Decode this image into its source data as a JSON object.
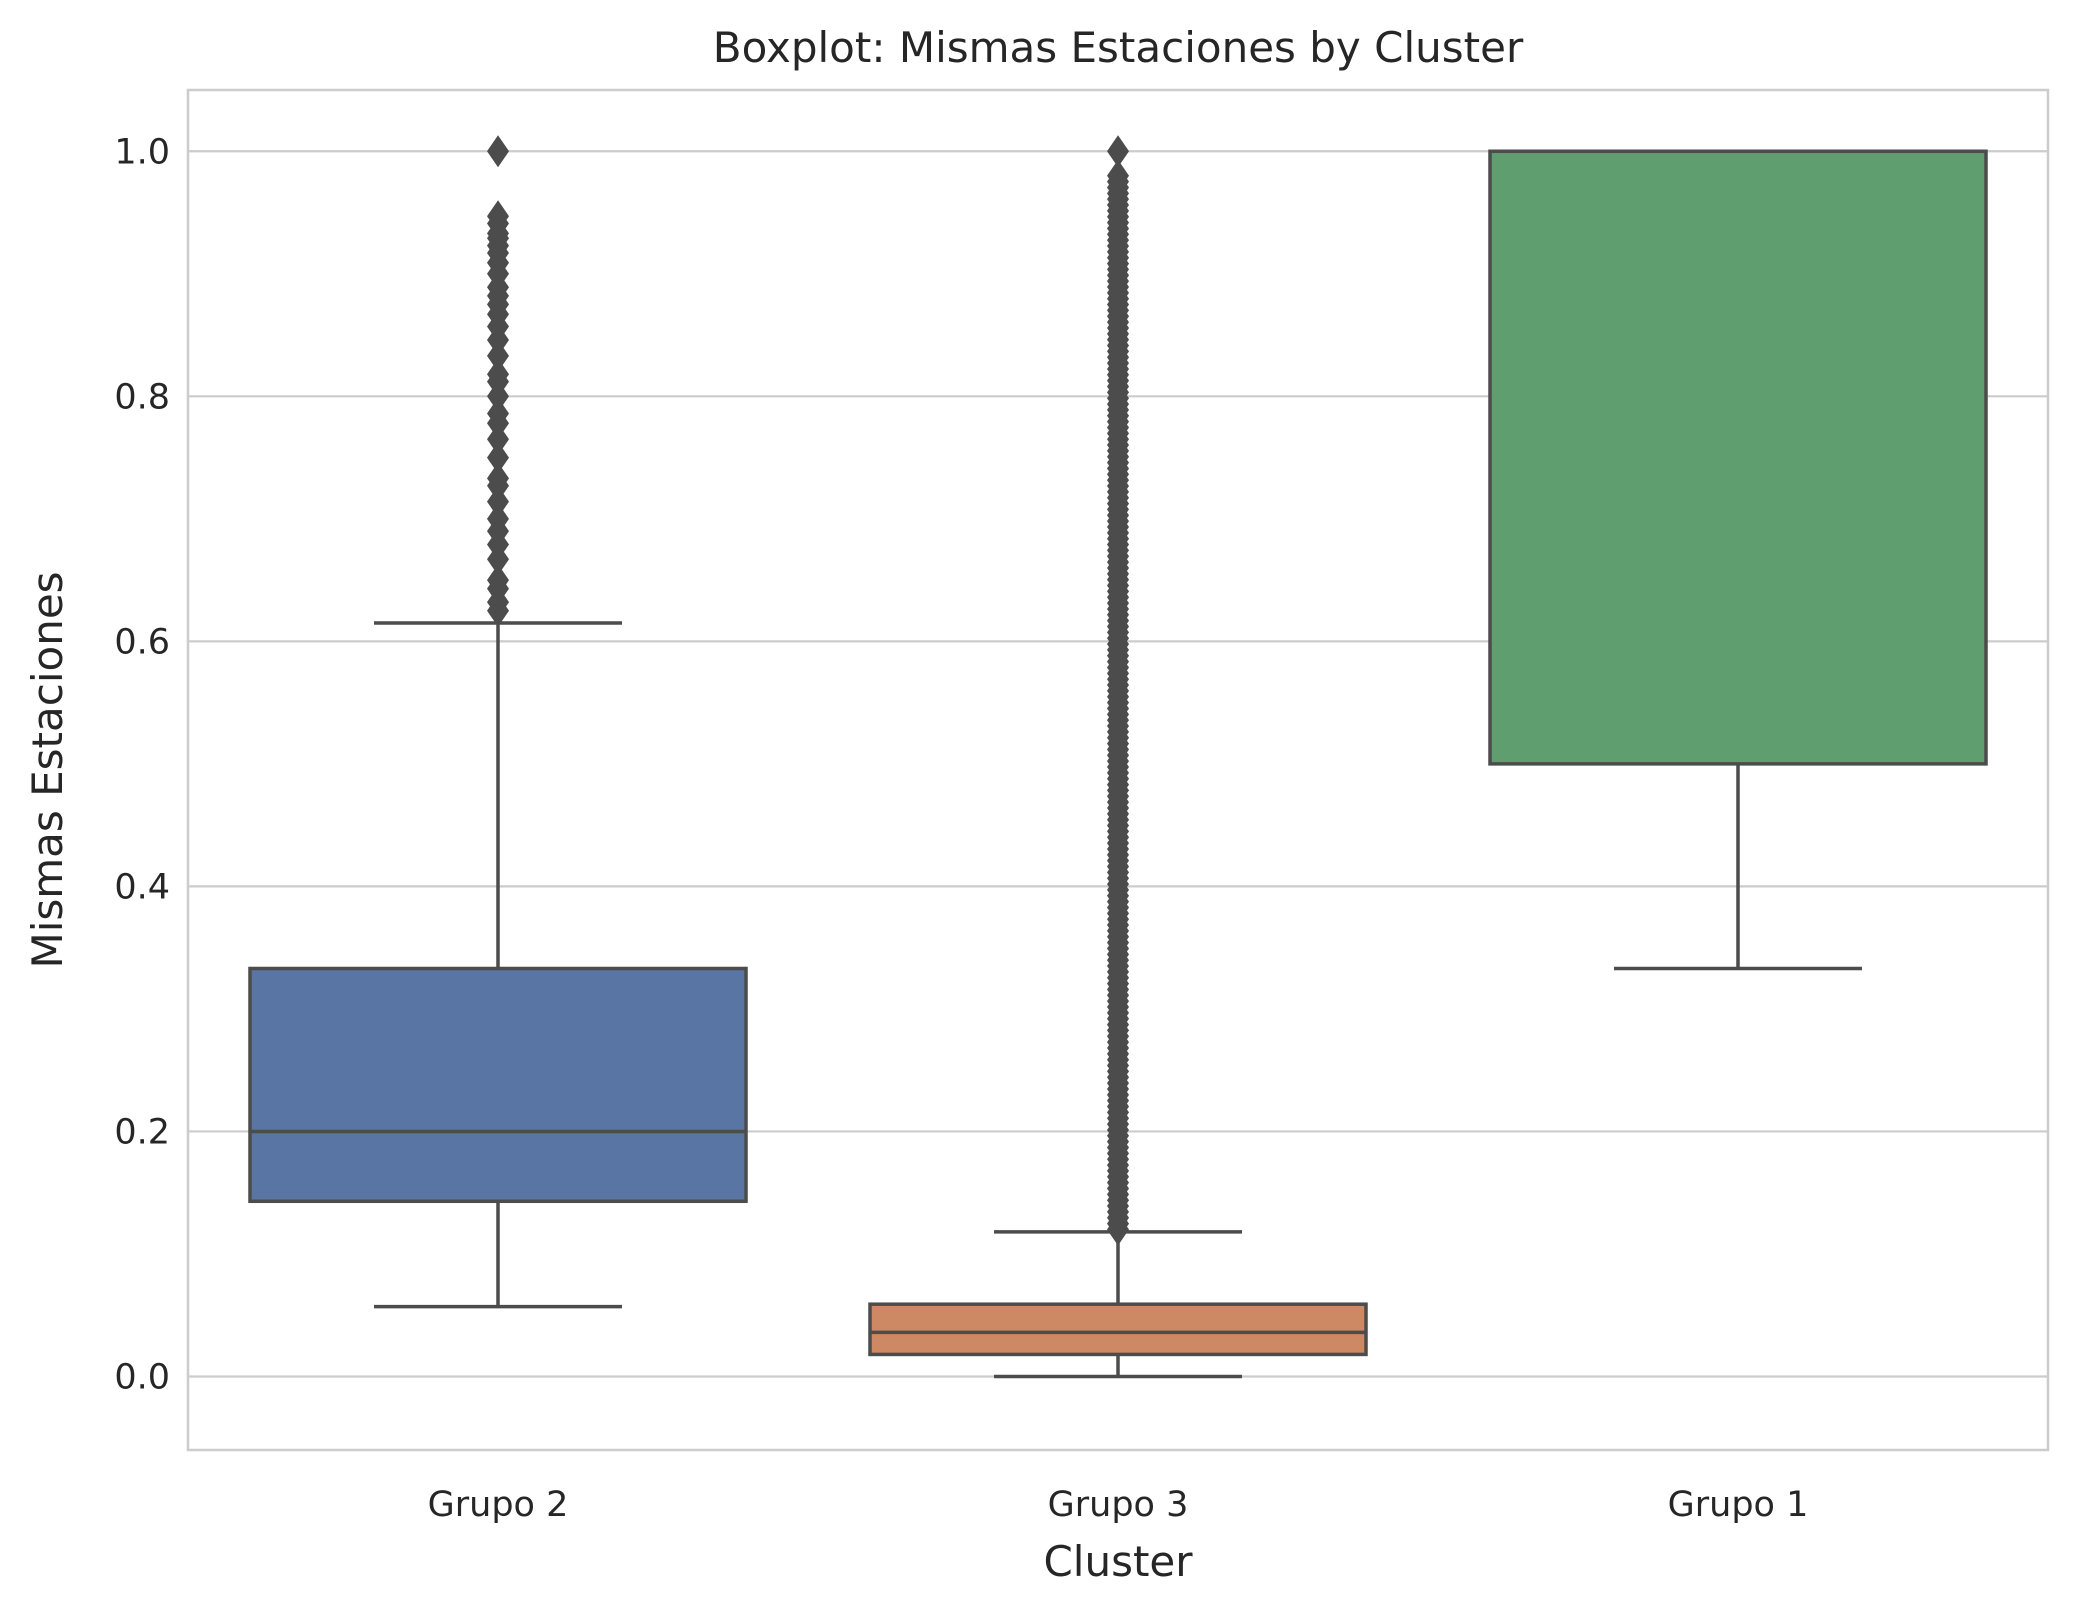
{
  "chart_data": {
    "type": "box",
    "title": "Boxplot: Mismas Estaciones by Cluster",
    "xlabel": "Cluster",
    "ylabel": "Mismas Estaciones",
    "ylim": [
      -0.06,
      1.05
    ],
    "yticks": [
      "0.0",
      "0.2",
      "0.4",
      "0.6",
      "0.8",
      "1.0"
    ],
    "grid": "horizontal",
    "categories": [
      "Grupo 2",
      "Grupo 3",
      "Grupo 1"
    ],
    "boxes": [
      {
        "category": "Grupo 2",
        "color": "#5975a4",
        "whisker_low": 0.057,
        "q1": 0.143,
        "median": 0.2,
        "q3": 0.333,
        "whisker_high": 0.615,
        "outliers": [
          0.625,
          0.632,
          0.643,
          0.65,
          0.667,
          0.679,
          0.69,
          0.7,
          0.714,
          0.727,
          0.733,
          0.75,
          0.765,
          0.778,
          0.786,
          0.8,
          0.812,
          0.818,
          0.833,
          0.846,
          0.857,
          0.867,
          0.875,
          0.882,
          0.889,
          0.9,
          0.909,
          0.917,
          0.923,
          0.929,
          0.933,
          0.941,
          0.947,
          1.0
        ]
      },
      {
        "category": "Grupo 3",
        "color": "#cc8963",
        "whisker_low": 0.0,
        "q1": 0.018,
        "median": 0.036,
        "q3": 0.059,
        "whisker_high": 0.118,
        "outliers_dense_range": [
          0.12,
          0.98
        ],
        "outliers": [
          1.0
        ]
      },
      {
        "category": "Grupo 1",
        "color": "#5f9e6e",
        "whisker_low": 0.333,
        "q1": 0.5,
        "median": 1.0,
        "q3": 1.0,
        "whisker_high": 1.0,
        "outliers": []
      }
    ]
  }
}
